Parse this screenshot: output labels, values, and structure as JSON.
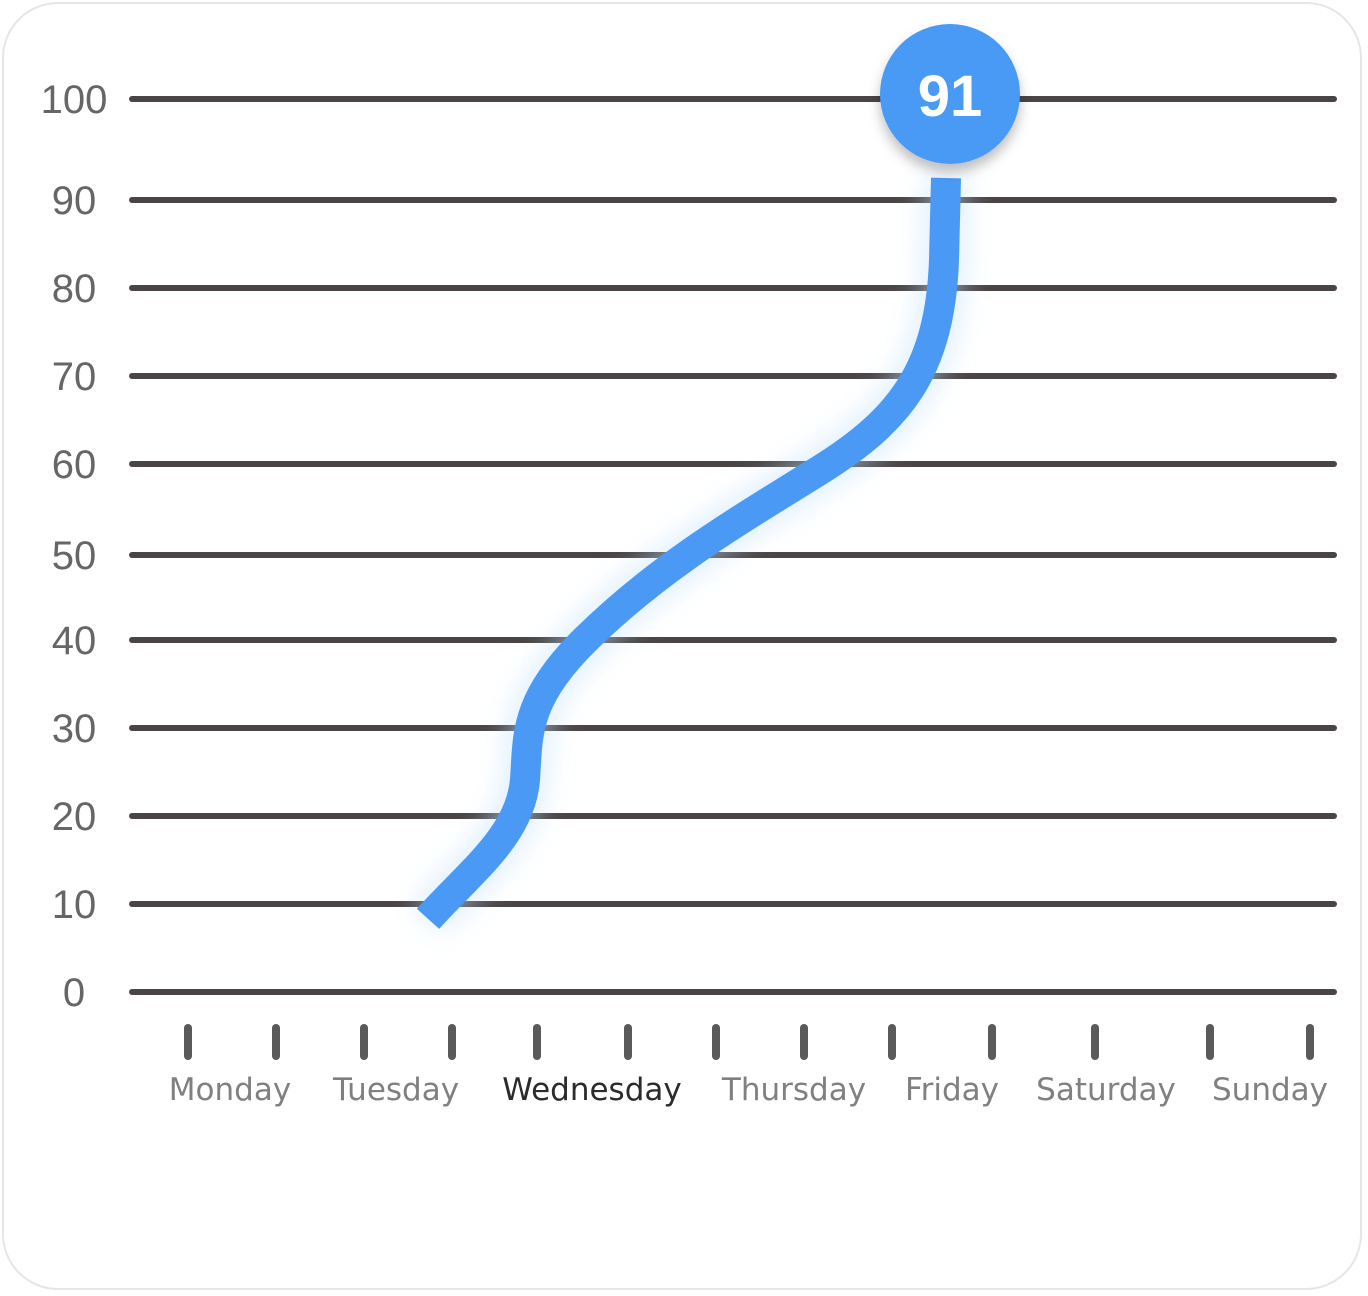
{
  "chart_data": {
    "type": "line",
    "y_ticks": [
      "100",
      "90",
      "80",
      "70",
      "60",
      "50",
      "40",
      "30",
      "20",
      "10",
      "0"
    ],
    "x_categories": [
      "Monday",
      "Tuesday",
      "Wednesday",
      "Thursday",
      "Friday",
      "Saturday",
      "Sunday"
    ],
    "highlighted_category": "Wednesday",
    "ylim": [
      0,
      100
    ],
    "grid": true,
    "series": [
      {
        "color": "#4a9af5",
        "points": [
          {
            "x": "Tuesday",
            "y": 9
          },
          {
            "x": "Wednesday",
            "y": 20
          },
          {
            "x": "Wednesday",
            "y": 30
          },
          {
            "x": "Wednesday",
            "y": 40
          },
          {
            "x": "Thursday",
            "y": 52
          },
          {
            "x": "Thursday",
            "y": 62
          },
          {
            "x": "Friday",
            "y": 72
          },
          {
            "x": "Friday",
            "y": 91
          }
        ]
      }
    ],
    "callout": {
      "label": "91",
      "value": 91,
      "color": "#4a9af5"
    }
  }
}
